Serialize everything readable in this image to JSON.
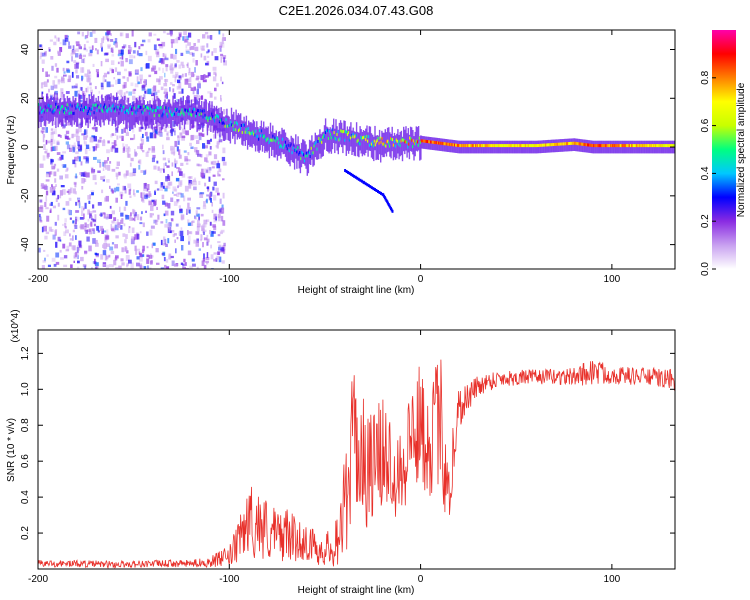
{
  "figure_title": "C2E1.2026.034.07.43.G08",
  "chart_data": [
    {
      "type": "heatmap",
      "title": "C2E1.2026.034.07.43.G08",
      "xlabel": "Height of straight line (km)",
      "ylabel": "Frequency (Hz)",
      "xlim": [
        -200,
        133
      ],
      "ylim": [
        -50,
        48
      ],
      "xticks": [
        -200,
        -100,
        0,
        100
      ],
      "yticks": [
        -40,
        -20,
        0,
        20,
        40
      ],
      "colorbar": {
        "label": "Normalized spectral amplitude",
        "range": [
          0.0,
          1.0
        ],
        "ticks": [
          0.0,
          0.2,
          0.4,
          0.6,
          0.8
        ],
        "colors": [
          "#ffffff",
          "#c8a0f0",
          "#8a2be2",
          "#0000ff",
          "#00c8ff",
          "#00ff80",
          "#c8ff00",
          "#ffff00",
          "#ff8000",
          "#ff0000",
          "#ff00aa"
        ]
      },
      "ridge": [
        {
          "x": -200,
          "y": 15,
          "amp": 0.45
        },
        {
          "x": -180,
          "y": 15,
          "amp": 0.5
        },
        {
          "x": -160,
          "y": 15,
          "amp": 0.45
        },
        {
          "x": -140,
          "y": 14,
          "amp": 0.5
        },
        {
          "x": -120,
          "y": 14,
          "amp": 0.5
        },
        {
          "x": -100,
          "y": 9,
          "amp": 0.55
        },
        {
          "x": -90,
          "y": 6,
          "amp": 0.55
        },
        {
          "x": -80,
          "y": 3,
          "amp": 0.55
        },
        {
          "x": -70,
          "y": 0,
          "amp": 0.5
        },
        {
          "x": -60,
          "y": -5,
          "amp": 0.55
        },
        {
          "x": -50,
          "y": 5,
          "amp": 0.6
        },
        {
          "x": -40,
          "y": 4,
          "amp": 0.6
        },
        {
          "x": -30,
          "y": 2,
          "amp": 0.65
        },
        {
          "x": -20,
          "y": 1,
          "amp": 0.75
        },
        {
          "x": -10,
          "y": 1,
          "amp": 0.8
        },
        {
          "x": 0,
          "y": 2,
          "amp": 0.85
        },
        {
          "x": 20,
          "y": 0,
          "amp": 0.8
        },
        {
          "x": 40,
          "y": 0,
          "amp": 0.7
        },
        {
          "x": 60,
          "y": 0,
          "amp": 0.7
        },
        {
          "x": 80,
          "y": 1,
          "amp": 0.75
        },
        {
          "x": 90,
          "y": 0,
          "amp": 0.85
        },
        {
          "x": 133,
          "y": 0,
          "amp": 0.65
        }
      ],
      "branch": [
        {
          "x": -40,
          "y": -10
        },
        {
          "x": -30,
          "y": -15
        },
        {
          "x": -20,
          "y": -20
        },
        {
          "x": -15,
          "y": -27
        }
      ]
    },
    {
      "type": "line",
      "xlabel": "Height of straight line (km)",
      "ylabel": "SNR (10 * v/v)",
      "y_multiplier": "(x10^4)",
      "xlim": [
        -200,
        133
      ],
      "ylim": [
        0,
        1.33
      ],
      "xticks": [
        -200,
        -100,
        0,
        100
      ],
      "yticks": [
        0.2,
        0.4,
        0.6,
        0.8,
        1.0,
        1.2
      ],
      "yticklabels": [
        "0.2",
        "0.4",
        "0.6",
        "0.8",
        "1.0",
        "1.2"
      ],
      "color": "#e8302a",
      "series": [
        {
          "name": "SNR",
          "x": [
            -200,
            -180,
            -160,
            -140,
            -120,
            -110,
            -100,
            -95,
            -90,
            -85,
            -80,
            -75,
            -70,
            -65,
            -60,
            -55,
            -50,
            -45,
            -40,
            -35,
            -30,
            -25,
            -20,
            -15,
            -10,
            -5,
            0,
            5,
            10,
            15,
            20,
            30,
            40,
            60,
            80,
            90,
            100,
            120,
            133
          ],
          "values": [
            0.03,
            0.03,
            0.025,
            0.03,
            0.03,
            0.04,
            0.07,
            0.15,
            0.28,
            0.25,
            0.22,
            0.18,
            0.2,
            0.16,
            0.15,
            0.12,
            0.1,
            0.15,
            0.3,
            0.75,
            0.6,
            0.55,
            0.65,
            0.6,
            0.55,
            0.75,
            0.8,
            0.7,
            0.85,
            0.45,
            0.9,
            1.02,
            1.06,
            1.07,
            1.07,
            1.1,
            1.08,
            1.07,
            1.05
          ],
          "noise_amplitude": [
            0.02,
            0.02,
            0.02,
            0.02,
            0.02,
            0.03,
            0.06,
            0.12,
            0.2,
            0.2,
            0.18,
            0.15,
            0.15,
            0.12,
            0.1,
            0.1,
            0.08,
            0.15,
            0.3,
            0.4,
            0.35,
            0.35,
            0.3,
            0.3,
            0.3,
            0.3,
            0.35,
            0.3,
            0.4,
            0.3,
            0.12,
            0.06,
            0.05,
            0.04,
            0.05,
            0.08,
            0.05,
            0.05,
            0.06
          ]
        }
      ]
    }
  ]
}
